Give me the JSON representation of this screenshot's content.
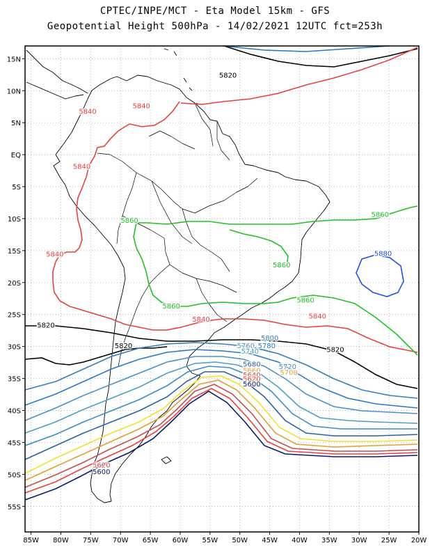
{
  "title": {
    "line1": "CPTEC/INPE/MCT -  Eta Model 15km - GFS",
    "line2": "Geopotential Height 500hPa - 14/02/2021 12UTC fct=253h"
  },
  "map": {
    "extent": {
      "lon": [
        -86,
        -20
      ],
      "lat": [
        -59,
        17
      ]
    },
    "lat_ticks": [
      {
        "value": 15,
        "label": "15N"
      },
      {
        "value": 10,
        "label": "10N"
      },
      {
        "value": 5,
        "label": "5N"
      },
      {
        "value": 0,
        "label": "EQ"
      },
      {
        "value": -5,
        "label": "5S"
      },
      {
        "value": -10,
        "label": "10S"
      },
      {
        "value": -15,
        "label": "15S"
      },
      {
        "value": -20,
        "label": "20S"
      },
      {
        "value": -25,
        "label": "25S"
      },
      {
        "value": -30,
        "label": "30S"
      },
      {
        "value": -35,
        "label": "35S"
      },
      {
        "value": -40,
        "label": "40S"
      },
      {
        "value": -45,
        "label": "45S"
      },
      {
        "value": -50,
        "label": "50S"
      },
      {
        "value": -55,
        "label": "55S"
      }
    ],
    "lon_ticks": [
      {
        "value": -85,
        "label": "85W"
      },
      {
        "value": -80,
        "label": "80W"
      },
      {
        "value": -75,
        "label": "75W"
      },
      {
        "value": -70,
        "label": "70W"
      },
      {
        "value": -65,
        "label": "65W"
      },
      {
        "value": -60,
        "label": "60W"
      },
      {
        "value": -55,
        "label": "55W"
      },
      {
        "value": -50,
        "label": "50W"
      },
      {
        "value": -45,
        "label": "45W"
      },
      {
        "value": -40,
        "label": "40W"
      },
      {
        "value": -35,
        "label": "35W"
      },
      {
        "value": -30,
        "label": "30W"
      },
      {
        "value": -25,
        "label": "25W"
      },
      {
        "value": -20,
        "label": "20W"
      }
    ],
    "grid_dotted": true
  },
  "colors": {
    "coastline": "#000000",
    "grid": "#999999",
    "5600": "#0a1a6e",
    "5620": "#e8403c",
    "5640": "#c0504d",
    "5660": "#e0a030",
    "5680": "#f0e030",
    "5700": "#2a5fa8",
    "5720": "#3a8cc8",
    "5740": "#4aa0c0",
    "5760": "#4a90c8",
    "5780": "#2878c8",
    "5800": "#3a7ab8",
    "5820": "#000000",
    "5840": "#e8403c",
    "5860": "#22c022",
    "5880": "#2050e0"
  },
  "contour_labels": [
    {
      "text": "5820",
      "lon": -52,
      "lat": 12.5,
      "color": "#000000"
    },
    {
      "text": "5840",
      "lon": -75.5,
      "lat": 6.8,
      "color": "#e8403c"
    },
    {
      "text": "5840",
      "lon": -66.5,
      "lat": 7.7,
      "color": "#e8403c"
    },
    {
      "text": "5840",
      "lon": -76.5,
      "lat": -1.8,
      "color": "#e8403c"
    },
    {
      "text": "5840",
      "lon": -81,
      "lat": -15.5,
      "color": "#e8403c"
    },
    {
      "text": "5840",
      "lon": -56.5,
      "lat": -25.7,
      "color": "#e8403c"
    },
    {
      "text": "5840",
      "lon": -37,
      "lat": -25.2,
      "color": "#e8403c"
    },
    {
      "text": "5860",
      "lon": -68.5,
      "lat": -10.2,
      "color": "#22c022"
    },
    {
      "text": "5860",
      "lon": -26.5,
      "lat": -9.3,
      "color": "#22c022"
    },
    {
      "text": "5860",
      "lon": -43,
      "lat": -17.2,
      "color": "#22c022"
    },
    {
      "text": "5860",
      "lon": -61.5,
      "lat": -23.6,
      "color": "#22c022"
    },
    {
      "text": "5860",
      "lon": -39,
      "lat": -22.7,
      "color": "#22c022"
    },
    {
      "text": "5880",
      "lon": -26,
      "lat": -15.4,
      "color": "#2050e0"
    },
    {
      "text": "5820",
      "lon": -82.5,
      "lat": -26.6,
      "color": "#000000"
    },
    {
      "text": "5820",
      "lon": -69.5,
      "lat": -29.8,
      "color": "#000000"
    },
    {
      "text": "5820",
      "lon": -34,
      "lat": -30.4,
      "color": "#000000"
    },
    {
      "text": "5800",
      "lon": -45,
      "lat": -28.6,
      "color": "#3a7ab8"
    },
    {
      "text": "5780",
      "lon": -45.5,
      "lat": -29.8,
      "color": "#2878c8"
    },
    {
      "text": "5760",
      "lon": -49,
      "lat": -29.8,
      "color": "#4a90c8"
    },
    {
      "text": "5740",
      "lon": -48.3,
      "lat": -30.7,
      "color": "#4aa0c0"
    },
    {
      "text": "5720",
      "lon": -42,
      "lat": -33.1,
      "color": "#3a8cc8"
    },
    {
      "text": "5700",
      "lon": -41.8,
      "lat": -34.0,
      "color": "#e0a030"
    },
    {
      "text": "5680",
      "lon": -48,
      "lat": -32.7,
      "color": "#2a5fa8"
    },
    {
      "text": "5660",
      "lon": -48,
      "lat": -33.7,
      "color": "#e0a030"
    },
    {
      "text": "5640",
      "lon": -48,
      "lat": -34.4,
      "color": "#c0504d"
    },
    {
      "text": "5620",
      "lon": -48,
      "lat": -35.0,
      "color": "#e8403c"
    },
    {
      "text": "5600",
      "lon": -48,
      "lat": -35.8,
      "color": "#0a1a6e"
    },
    {
      "text": "5620",
      "lon": -73.2,
      "lat": -48.5,
      "color": "#e8403c"
    },
    {
      "text": "5600",
      "lon": -73.2,
      "lat": -49.5,
      "color": "#0a1a6e"
    }
  ]
}
